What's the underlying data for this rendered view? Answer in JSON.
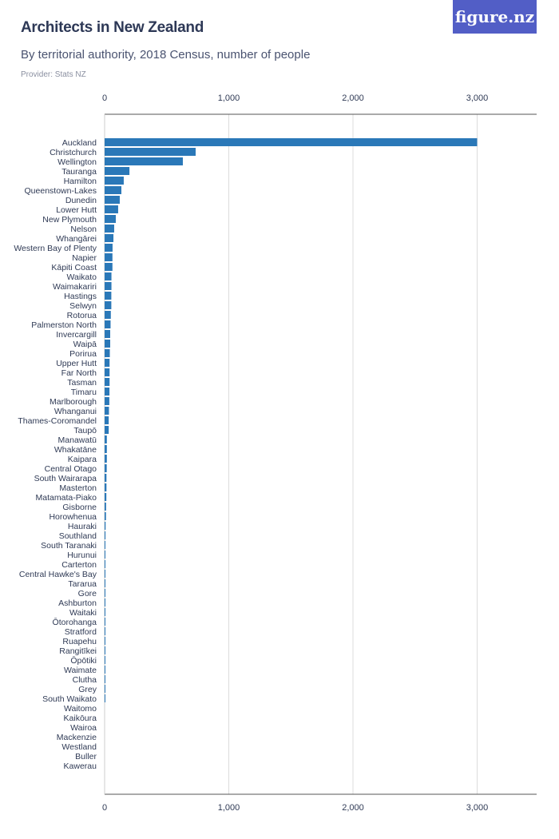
{
  "header": {
    "title": "Architects in New Zealand",
    "subtitle": "By territorial authority, 2018 Census, number of people",
    "provider": "Provider: Stats NZ",
    "logo": "figure.nz"
  },
  "colors": {
    "bar": "#2a78b8",
    "logo_bg": "#525ec6"
  },
  "chart_data": {
    "type": "bar",
    "orientation": "horizontal",
    "title": "Architects in New Zealand",
    "subtitle": "By territorial authority, 2018 Census, number of people",
    "xlim": [
      0,
      3500
    ],
    "xticks": [
      0,
      1000,
      2000,
      3000
    ],
    "xtick_labels": [
      "0",
      "1,000",
      "2,000",
      "3,000"
    ],
    "grid": true,
    "categories": [
      "Auckland",
      "Christchurch",
      "Wellington",
      "Tauranga",
      "Hamilton",
      "Queenstown-Lakes",
      "Dunedin",
      "Lower Hutt",
      "New Plymouth",
      "Nelson",
      "Whangārei",
      "Western Bay of Plenty",
      "Napier",
      "Kāpiti Coast",
      "Waikato",
      "Waimakariri",
      "Hastings",
      "Selwyn",
      "Rotorua",
      "Palmerston North",
      "Invercargill",
      "Waipā",
      "Porirua",
      "Upper Hutt",
      "Far North",
      "Tasman",
      "Timaru",
      "Marlborough",
      "Whanganui",
      "Thames-Coromandel",
      "Taupō",
      "Manawatū",
      "Whakatāne",
      "Kaipara",
      "Central Otago",
      "South Wairarapa",
      "Masterton",
      "Matamata-Piako",
      "Gisborne",
      "Horowhenua",
      "Hauraki",
      "Southland",
      "South Taranaki",
      "Hurunui",
      "Carterton",
      "Central Hawke's Bay",
      "Tararua",
      "Gore",
      "Ashburton",
      "Waitaki",
      "Ōtorohanga",
      "Stratford",
      "Ruapehu",
      "Rangitīkei",
      "Ōpōtiki",
      "Waimate",
      "Clutha",
      "Grey",
      "South Waikato",
      "Waitomo",
      "Kaikōura",
      "Wairoa",
      "Mackenzie",
      "Westland",
      "Buller",
      "Kawerau"
    ],
    "values": [
      3000,
      733,
      630,
      200,
      154,
      135,
      122,
      109,
      90,
      77,
      71,
      64,
      63,
      63,
      55,
      55,
      54,
      54,
      50,
      48,
      45,
      45,
      42,
      40,
      40,
      40,
      39,
      38,
      35,
      33,
      33,
      18,
      18,
      18,
      17,
      15,
      15,
      14,
      12,
      11,
      8,
      7,
      6,
      6,
      6,
      6,
      6,
      6,
      6,
      6,
      6,
      3,
      3,
      3,
      3,
      3,
      3,
      3,
      3,
      0,
      0,
      0,
      0,
      0,
      0,
      0
    ]
  }
}
